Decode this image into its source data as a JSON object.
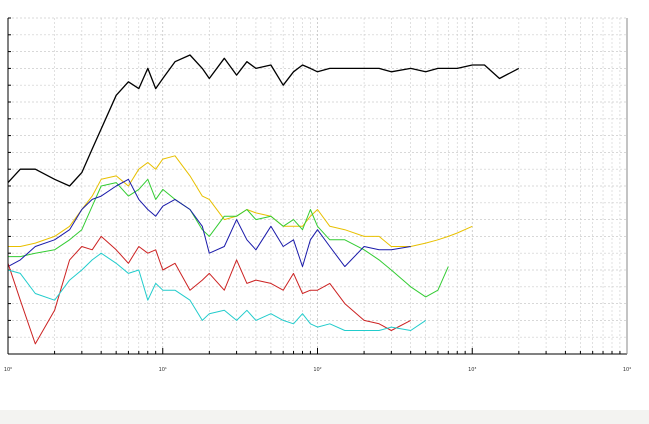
{
  "chart_data": {
    "type": "line",
    "x": [
      1,
      1.2,
      1.5,
      2,
      2.5,
      3,
      3.5,
      4,
      5,
      6,
      7,
      8,
      9,
      10,
      12,
      15,
      18,
      20,
      25,
      30,
      35,
      40,
      50,
      60,
      70,
      80,
      90,
      100,
      120,
      150,
      200,
      250,
      300,
      400,
      500,
      600,
      700,
      800,
      1000,
      1200,
      1500,
      2000,
      2500
    ],
    "series": [
      {
        "color": "#000000",
        "values": [
          51,
          55,
          55,
          52,
          50,
          54,
          61,
          67,
          77,
          81,
          79,
          85,
          79,
          82,
          87,
          89,
          85,
          82,
          88,
          83,
          87,
          85,
          86,
          80,
          84,
          86,
          85,
          84,
          85,
          85,
          85,
          85,
          84,
          85,
          84,
          85,
          85,
          85,
          86,
          86,
          82,
          85,
          null
        ]
      },
      {
        "color": "#e8c000",
        "values": [
          32,
          32,
          33,
          35,
          38,
          43,
          47,
          52,
          53,
          50,
          55,
          57,
          55,
          58,
          59,
          53,
          47,
          46,
          40,
          41,
          43,
          42,
          41,
          38,
          38,
          38,
          41,
          43,
          38,
          37,
          35,
          35,
          32,
          32,
          33,
          34,
          35,
          36,
          38,
          null,
          null,
          null,
          null
        ]
      },
      {
        "color": "#33cc33",
        "values": [
          29,
          29,
          30,
          31,
          34,
          37,
          44,
          50,
          51,
          47,
          49,
          52,
          46,
          49,
          46,
          43,
          37,
          35,
          41,
          41,
          43,
          40,
          41,
          38,
          40,
          37,
          43,
          38,
          34,
          34,
          31,
          28,
          25,
          20,
          17,
          19,
          26,
          null,
          null,
          null,
          null,
          null,
          null
        ]
      },
      {
        "color": "#1a1aaa",
        "values": [
          26,
          28,
          32,
          34,
          37,
          43,
          46,
          47,
          50,
          52,
          46,
          43,
          41,
          44,
          46,
          43,
          38,
          30,
          32,
          40,
          34,
          31,
          38,
          32,
          34,
          26,
          34,
          37,
          32,
          26,
          32,
          31,
          31,
          32,
          null,
          null,
          null,
          null,
          null,
          null,
          null,
          null,
          null
        ]
      },
      {
        "color": "#cc2222",
        "values": [
          27,
          16,
          3,
          13,
          28,
          32,
          31,
          35,
          31,
          27,
          32,
          30,
          31,
          25,
          27,
          19,
          22,
          24,
          19,
          28,
          21,
          22,
          21,
          19,
          24,
          18,
          19,
          19,
          21,
          15,
          10,
          9,
          7,
          10,
          null,
          null,
          null,
          null,
          null,
          null,
          null,
          null,
          null
        ]
      },
      {
        "color": "#22cccc",
        "values": [
          25,
          24,
          18,
          16,
          22,
          25,
          28,
          30,
          27,
          24,
          25,
          16,
          21,
          19,
          19,
          16,
          10,
          12,
          13,
          10,
          13,
          10,
          12,
          10,
          9,
          12,
          9,
          8,
          9,
          7,
          7,
          7,
          8,
          7,
          10,
          null,
          null,
          null,
          null,
          null,
          null,
          null,
          null
        ]
      }
    ],
    "xlog": true,
    "xlim": [
      1,
      10000
    ],
    "xticks": [
      {
        "value": 1,
        "label": "10⁰"
      },
      {
        "value": 10,
        "label": "10¹"
      },
      {
        "value": 100,
        "label": "10²"
      },
      {
        "value": 1000,
        "label": "10³"
      },
      {
        "value": 10000,
        "label": "10⁴"
      }
    ],
    "ylim": [
      0,
      100
    ],
    "yticks": [
      0,
      5,
      10,
      15,
      20,
      25,
      30,
      35,
      40,
      45,
      50,
      55,
      60,
      65,
      70,
      75,
      80,
      85,
      90,
      95,
      100
    ],
    "grid": true
  }
}
